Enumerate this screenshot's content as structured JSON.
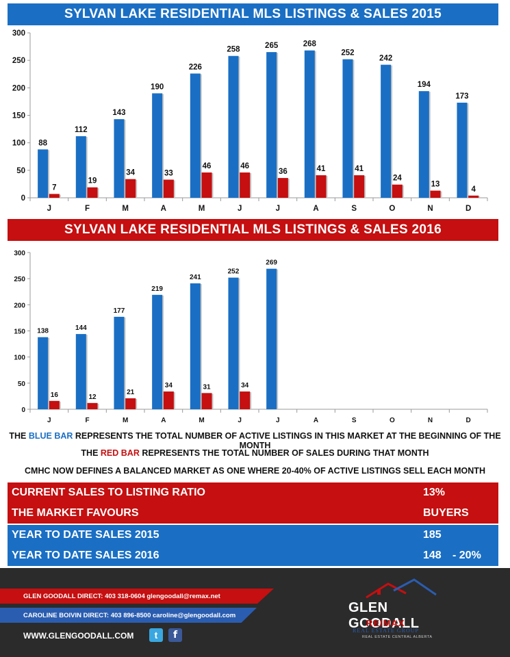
{
  "colors": {
    "blue": "#1a6fc4",
    "red": "#c50f10"
  },
  "header1": "SYLVAN LAKE RESIDENTIAL MLS LISTINGS & SALES 2015",
  "header2": "SYLVAN LAKE RESIDENTIAL MLS LISTINGS & SALES 2016",
  "chart_data": [
    {
      "type": "bar",
      "title": "SYLVAN LAKE RESIDENTIAL MLS LISTINGS & SALES 2015",
      "categories": [
        "J",
        "F",
        "M",
        "A",
        "M",
        "J",
        "J",
        "A",
        "S",
        "O",
        "N",
        "D"
      ],
      "series": [
        {
          "color": "#1a6fc4",
          "values": [
            88,
            112,
            143,
            190,
            226,
            258,
            265,
            268,
            252,
            242,
            194,
            173
          ]
        },
        {
          "color": "#c50f10",
          "values": [
            7,
            19,
            34,
            33,
            46,
            46,
            36,
            41,
            41,
            24,
            13,
            4
          ]
        }
      ],
      "yticks": [
        0,
        50,
        100,
        150,
        200,
        250,
        300
      ],
      "ylim": [
        0,
        300
      ],
      "grid": false
    },
    {
      "type": "bar",
      "title": "SYLVAN LAKE RESIDENTIAL MLS LISTINGS & SALES 2016",
      "categories": [
        "J",
        "F",
        "M",
        "A",
        "M",
        "J",
        "J",
        "A",
        "S",
        "O",
        "N",
        "D"
      ],
      "series": [
        {
          "color": "#1a6fc4",
          "values": [
            138,
            144,
            177,
            219,
            241,
            252,
            269,
            null,
            null,
            null,
            null,
            null
          ]
        },
        {
          "color": "#c50f10",
          "values": [
            16,
            12,
            21,
            34,
            31,
            34,
            null,
            null,
            null,
            null,
            null,
            null
          ]
        }
      ],
      "yticks": [
        0,
        50,
        100,
        150,
        200,
        250,
        300
      ],
      "ylim": [
        0,
        300
      ],
      "grid": false
    }
  ],
  "legend": {
    "line1_pre": "THE ",
    "line1_blue": "BLUE BAR",
    "line1_post": " REPRESENTS THE TOTAL NUMBER OF ACTIVE LISTINGS IN THIS MARKET AT THE BEGINNING OF THE MONTH",
    "line2_pre": "THE ",
    "line2_red": "RED BAR",
    "line2_post": " REPRESENTS THE TOTAL NUMBER OF SALES DURING THAT MONTH",
    "line3": "CMHC NOW DEFINES A BALANCED MARKET AS ONE WHERE 20-40% OF ACTIVE LISTINGS SELL EACH MONTH"
  },
  "stats": {
    "ratio_label": "CURRENT SALES TO LISTING RATIO",
    "ratio_value": "13%",
    "favours_label": "THE MARKET FAVOURS",
    "favours_value": "BUYERS",
    "ytd2015_label": "YEAR TO DATE SALES 2015",
    "ytd2015_value": "185",
    "ytd2016_label": "YEAR TO DATE SALES 2016",
    "ytd2016_value": "148",
    "ytd2016_change": "- 20%"
  },
  "footer": {
    "agent1": "GLEN GOODALL  DIRECT: 403 318-0604  glengoodall@remax.net",
    "agent2": "CAROLINE BOIVIN DIRECT: 403 896-8500 caroline@glengoodall.com",
    "website": "WWW.GLENGOODALL.COM",
    "twitter_icon": "twitter-icon",
    "facebook_icon": "facebook-icon",
    "logo_name": "GLEN GOODALL",
    "logo_brand": "RE/MAX",
    "logo_group": "REAL ESTATE GROUP",
    "logo_sub": "REAL ESTATE CENTRAL ALBERTA"
  }
}
